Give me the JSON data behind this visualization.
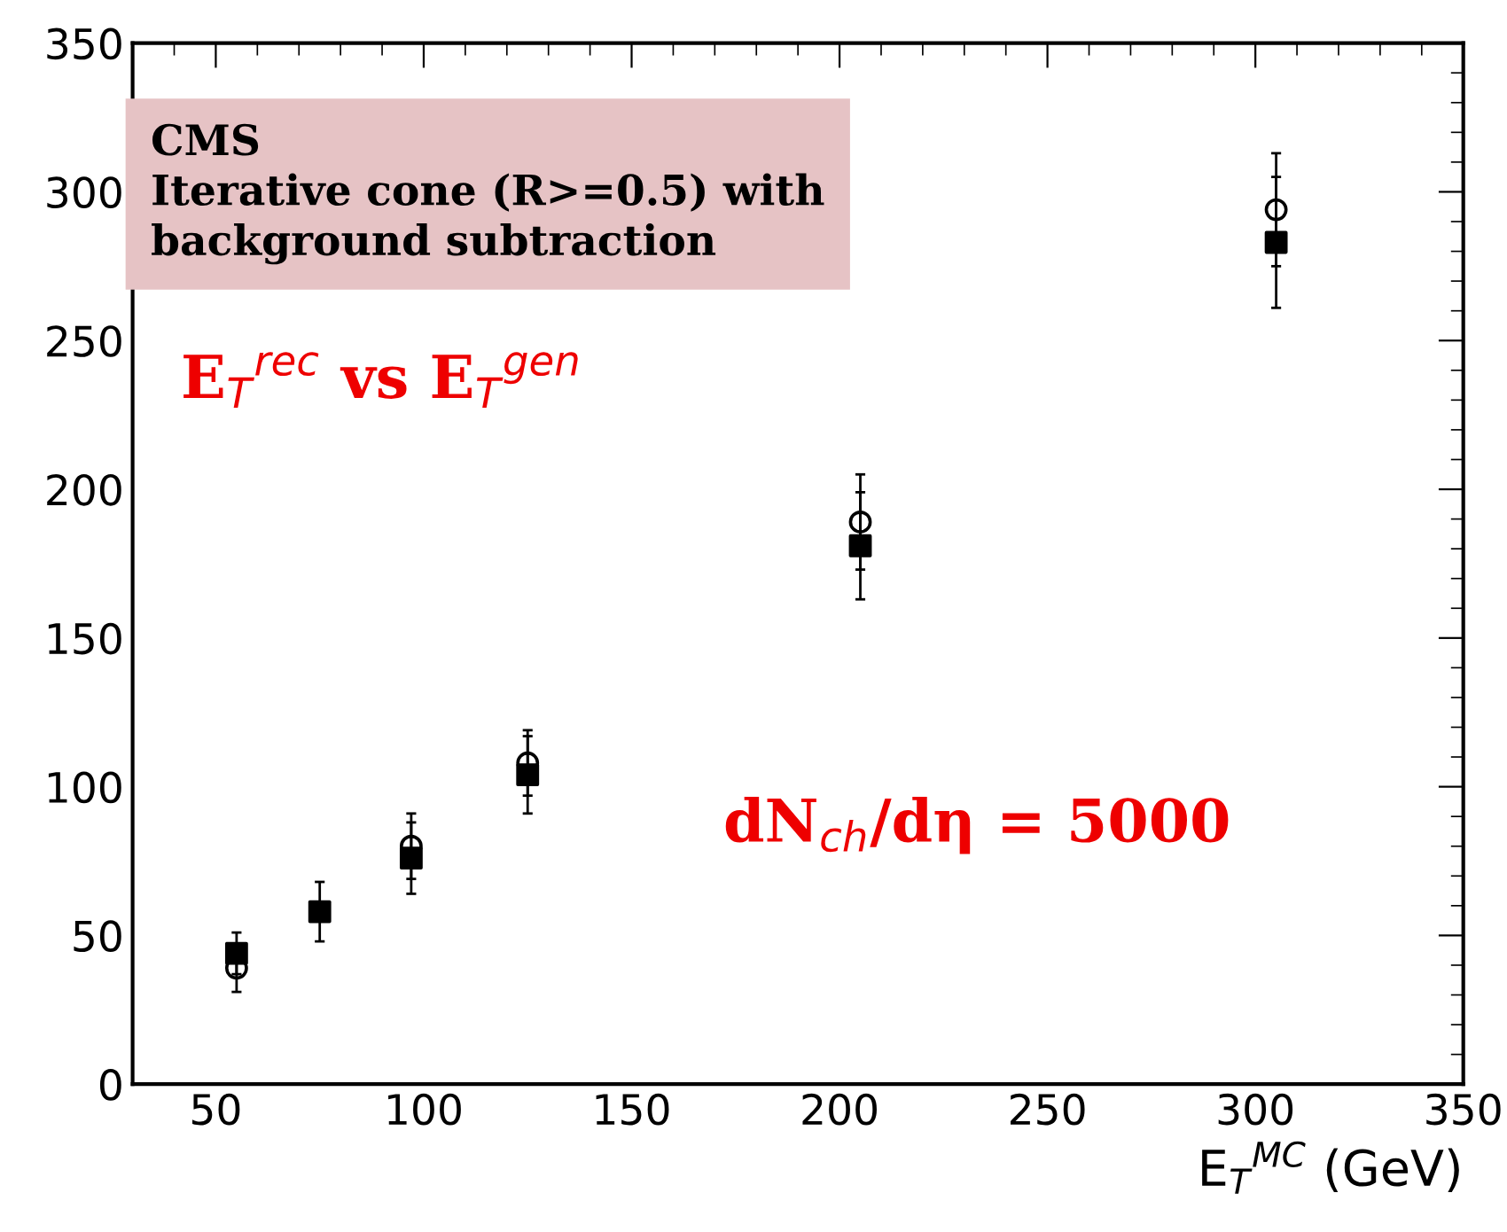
{
  "chart_data": {
    "type": "scatter",
    "x": [
      55,
      75,
      97,
      125,
      205,
      305
    ],
    "series": [
      {
        "color": "#000000",
        "marker": "square",
        "values": [
          44,
          58,
          76,
          104,
          181,
          283
        ],
        "errors": [
          7,
          10,
          12,
          13,
          18,
          22
        ]
      },
      {
        "color": "#000000",
        "marker": "circle",
        "values": [
          39,
          null,
          80,
          108,
          189,
          294
        ],
        "errors": [
          8,
          null,
          11,
          11,
          16,
          19
        ]
      }
    ],
    "xlabel": "E$_{T}$$^{MC}$ (GeV)",
    "xlim": [
      30,
      350
    ],
    "xticks": [
      50,
      100,
      150,
      200,
      250,
      300,
      350
    ],
    "ylim": [
      0,
      350
    ],
    "yticks": [
      0,
      50,
      100,
      150,
      200,
      250,
      300,
      350
    ],
    "grid": false,
    "annotations": [
      "CMS\nIterative cone (R>=0.5) with\nbackground subtraction",
      "E$_{T}$$^{rec}$ vs E$_{T}$$^{gen}$",
      "dN$_{ch}$/dη = 5000"
    ]
  }
}
